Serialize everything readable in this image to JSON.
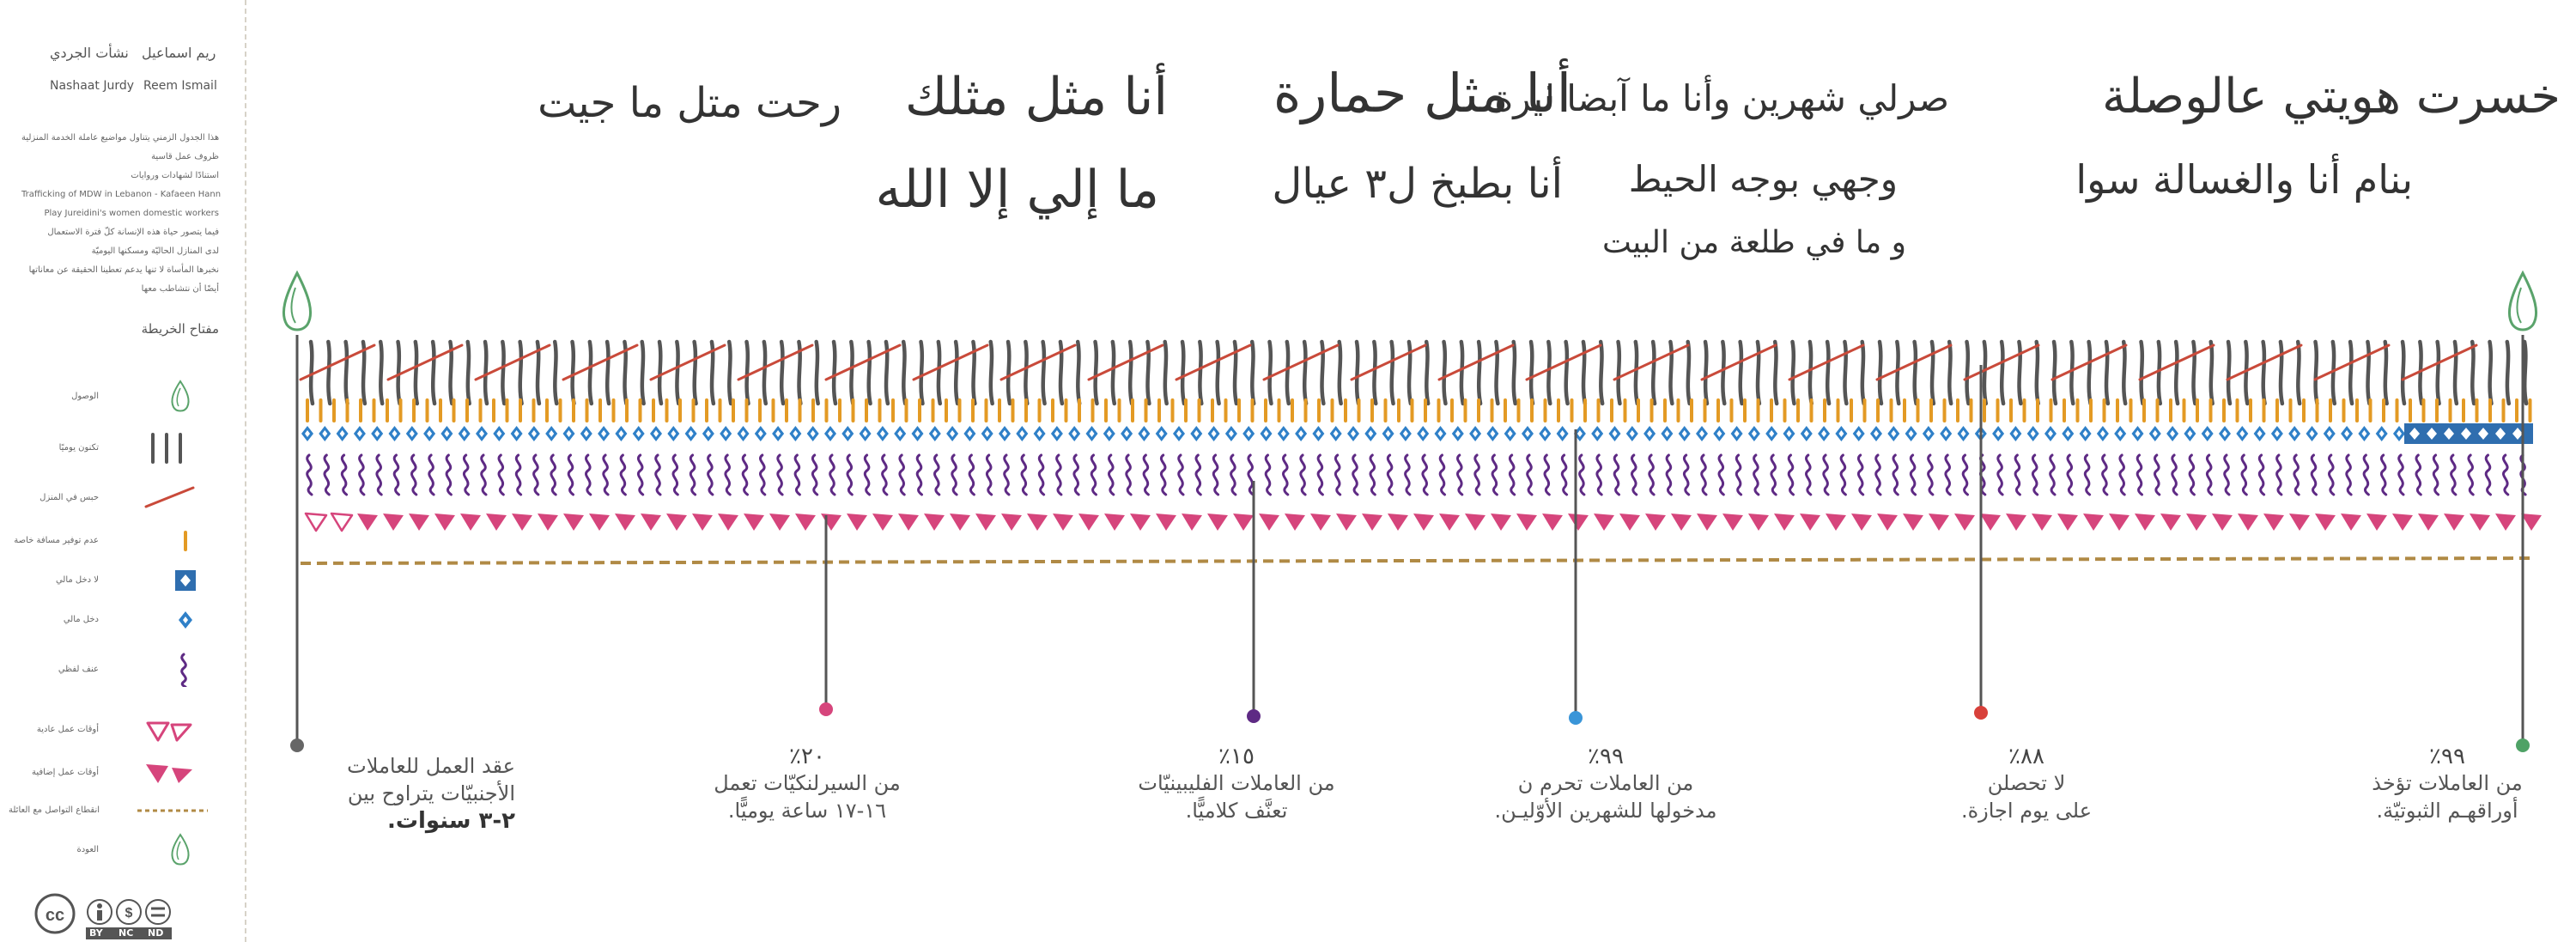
{
  "authors": {
    "arabic": [
      "ريم اسماعيل",
      "نشأت الجردي"
    ],
    "latin": [
      "Reem Ismail",
      "Nashaat Jurdy"
    ]
  },
  "description_lines": [
    "هذا الجدول الزمني يتناول مواضيع عاملة الخدمة المنزلية",
    "ظروف عمل قاسية",
    "استنادًا لشهادات وروايات",
    "Trafficking of MDW in Lebanon - Kafaeen Hann",
    "Play Jureidini's women domestic workers",
    "فيما يتصور حياة هذه الإنسانة كلّ فترة الاستعمال",
    "لدى المنازل الحاليّة ومسكنها اليوميّة",
    "نخبرها المأساة لا تنها يدعم تعطينا الحقيقة عن معاناتها",
    "أيضًا أن نتشاطب معها"
  ],
  "legend": {
    "title": "مفتاح الخريطة",
    "items": [
      {
        "label": "الوصول",
        "icon": "arrival-drop-icon",
        "color": "#5aa36b"
      },
      {
        "label": "تكنون يوميًا",
        "icon": "tally-marks-icon",
        "color": "#555555"
      },
      {
        "label": "حبس في المنزل",
        "icon": "red-slash-icon",
        "color": "#c94a3a"
      },
      {
        "label": "عدم توفير مسافة خاصة",
        "icon": "orange-dash-icon",
        "color": "#e39a24"
      },
      {
        "label": "لا دخل مالي",
        "icon": "blue-square-diamond-icon",
        "color": "#2f6eaf"
      },
      {
        "label": "دخل مالي",
        "icon": "blue-diamond-icon",
        "color": "#2f80c8"
      },
      {
        "label": "عنف لفظي",
        "icon": "purple-squiggle-icon",
        "color": "#5e2a84"
      },
      {
        "label": "أوقات عمل عادية",
        "icon": "pink-outline-triangles-icon",
        "color": "#d6457c"
      },
      {
        "label": "أوقات عمل إضافية",
        "icon": "pink-filled-triangles-icon",
        "color": "#d6457c"
      },
      {
        "label": "انقطاع التواصل مع العائلة",
        "icon": "brown-dashed-line-icon",
        "color": "#b08a45"
      },
      {
        "label": "العودة",
        "icon": "return-drop-icon",
        "color": "#5aa36b"
      }
    ]
  },
  "license": {
    "labels": [
      "BY",
      "NC",
      "ND"
    ],
    "icon": "creative-commons-icon"
  },
  "quotes": {
    "row1": [
      "خسرت هويتي عالوصلة",
      "صرلي شهرين وأنا ما آبضا ليرة",
      "أنا مثل حمارة",
      "أنا مثل مثلك",
      "رحت متل ما جيت"
    ],
    "row2": [
      "بنام أنا والغسالة سوا",
      "وجهي بوجه الحيط",
      "أنا بطبخ ل٣ عيال",
      "ما إلي إلا الله"
    ],
    "row3": "و ما في طلعة من البيت"
  },
  "stats": [
    {
      "value": "٩٩٪",
      "lines": [
        "من العاملات تؤخذ",
        "أوراقهـم الثبوتيّة."
      ],
      "color": "#4fa266"
    },
    {
      "value": "٨٨٪",
      "lines": [
        "لا تحصلن",
        "على يوم اجازة."
      ],
      "color": "#d8403a"
    },
    {
      "value": "٩٩٪",
      "lines": [
        "من العاملات تحرم ن",
        "مدخولها للشهرين الأوّليـن."
      ],
      "color": "#3a95d8"
    },
    {
      "value": "١٥٪",
      "lines": [
        "من العاملات الفليبينيّات",
        "تعنَّف كلاميًّا."
      ],
      "color": "#5e2a84"
    },
    {
      "value": "٢٠٪",
      "lines": [
        "من السيرلنكيّات تعمل",
        "١٦-١٧ ساعة يوميًّا."
      ],
      "color": "#d6457c"
    },
    {
      "value": "",
      "lines": [
        "عقد العمل للعاملات",
        "الأجنبيّات يتراوح بين",
        "٢-٣ سنوات."
      ],
      "color": "#666666"
    }
  ]
}
